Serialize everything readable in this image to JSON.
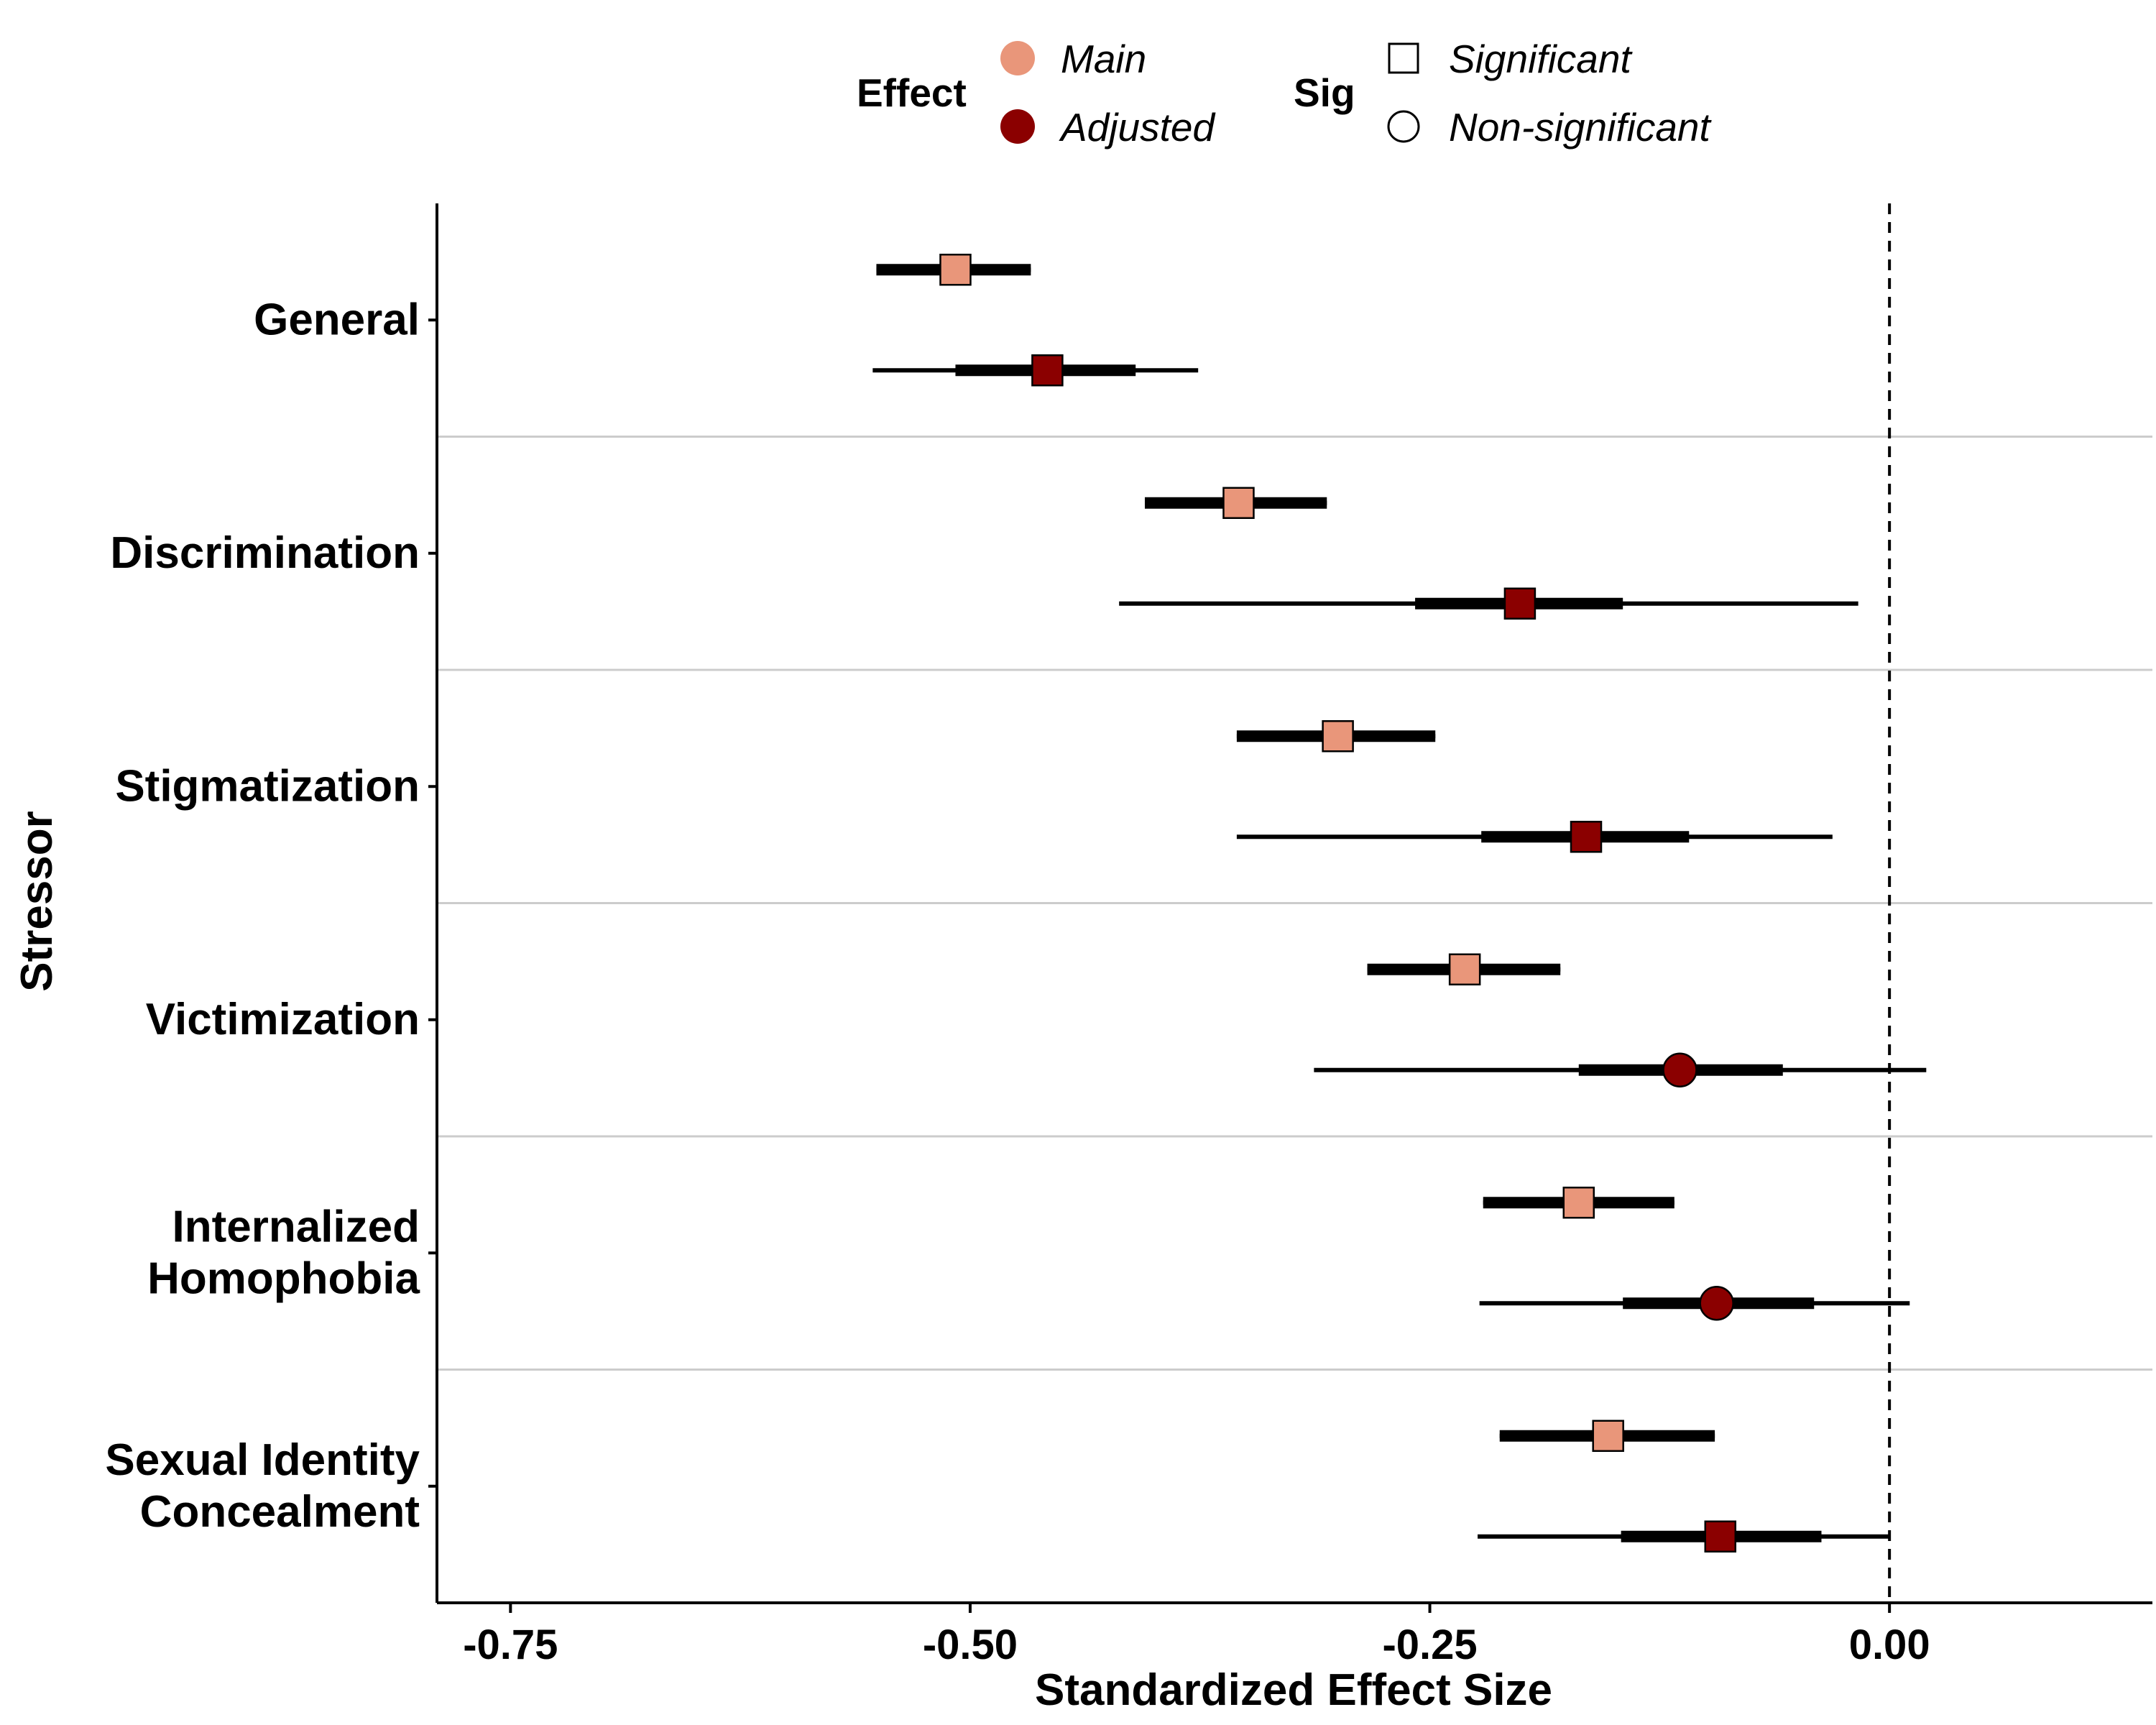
{
  "legend": {
    "effect_title": "Effect",
    "effect_items": [
      {
        "label": "Main",
        "color": "#E9967A"
      },
      {
        "label": "Adjusted",
        "color": "#8B0000"
      }
    ],
    "sig_title": "Sig",
    "sig_items": [
      {
        "label": "Significant",
        "shape": "square"
      },
      {
        "label": "Non-significant",
        "shape": "circle"
      }
    ]
  },
  "chart_data": {
    "type": "scatter",
    "subtype": "forest-plot",
    "xlabel": "Standardized Effect Size",
    "ylabel": "Stressor",
    "xlim": [
      -0.79,
      0.143
    ],
    "xticks": [
      -0.75,
      -0.5,
      -0.25,
      0.0
    ],
    "xtick_labels": [
      "-0.75",
      "-0.50",
      "-0.25",
      "0.00"
    ],
    "reference_line": 0.0,
    "grid": false,
    "legend_position": "top",
    "colors": {
      "Main": "#E9967A",
      "Adjusted": "#8B0000"
    },
    "categories": [
      {
        "label": [
          "General"
        ],
        "points": [
          {
            "effect": "Main",
            "est": -0.508,
            "ci66": [
              -0.551,
              -0.467
            ],
            "ci95": [
              -0.551,
              -0.467
            ],
            "sig": "Significant"
          },
          {
            "effect": "Adjusted",
            "est": -0.458,
            "ci66": [
              -0.508,
              -0.41
            ],
            "ci95": [
              -0.553,
              -0.376
            ],
            "sig": "Significant"
          }
        ]
      },
      {
        "label": [
          "Discrimination"
        ],
        "points": [
          {
            "effect": "Main",
            "est": -0.354,
            "ci66": [
              -0.405,
              -0.306
            ],
            "ci95": [
              -0.405,
              -0.306
            ],
            "sig": "Significant"
          },
          {
            "effect": "Adjusted",
            "est": -0.201,
            "ci66": [
              -0.258,
              -0.145
            ],
            "ci95": [
              -0.419,
              -0.017
            ],
            "sig": "Significant"
          }
        ]
      },
      {
        "label": [
          "Stigmatization"
        ],
        "points": [
          {
            "effect": "Main",
            "est": -0.3,
            "ci66": [
              -0.355,
              -0.247
            ],
            "ci95": [
              -0.355,
              -0.247
            ],
            "sig": "Significant"
          },
          {
            "effect": "Adjusted",
            "est": -0.165,
            "ci66": [
              -0.222,
              -0.109
            ],
            "ci95": [
              -0.355,
              -0.031
            ],
            "sig": "Significant"
          }
        ]
      },
      {
        "label": [
          "Victimization"
        ],
        "points": [
          {
            "effect": "Main",
            "est": -0.231,
            "ci66": [
              -0.284,
              -0.179
            ],
            "ci95": [
              -0.284,
              -0.179
            ],
            "sig": "Significant"
          },
          {
            "effect": "Adjusted",
            "est": -0.114,
            "ci66": [
              -0.169,
              -0.058
            ],
            "ci95": [
              -0.313,
              0.02
            ],
            "sig": "Non-significant"
          }
        ]
      },
      {
        "label": [
          "Internalized",
          "Homophobia"
        ],
        "points": [
          {
            "effect": "Main",
            "est": -0.169,
            "ci66": [
              -0.221,
              -0.117
            ],
            "ci95": [
              -0.221,
              -0.117
            ],
            "sig": "Significant"
          },
          {
            "effect": "Adjusted",
            "est": -0.094,
            "ci66": [
              -0.145,
              -0.041
            ],
            "ci95": [
              -0.223,
              0.011
            ],
            "sig": "Non-significant"
          }
        ]
      },
      {
        "label": [
          "Sexual Identity",
          "Concealment"
        ],
        "points": [
          {
            "effect": "Main",
            "est": -0.153,
            "ci66": [
              -0.212,
              -0.095
            ],
            "ci95": [
              -0.212,
              -0.095
            ],
            "sig": "Significant"
          },
          {
            "effect": "Adjusted",
            "est": -0.092,
            "ci66": [
              -0.146,
              -0.037
            ],
            "ci95": [
              -0.224,
              0.0
            ],
            "sig": "Significant"
          }
        ]
      }
    ]
  }
}
